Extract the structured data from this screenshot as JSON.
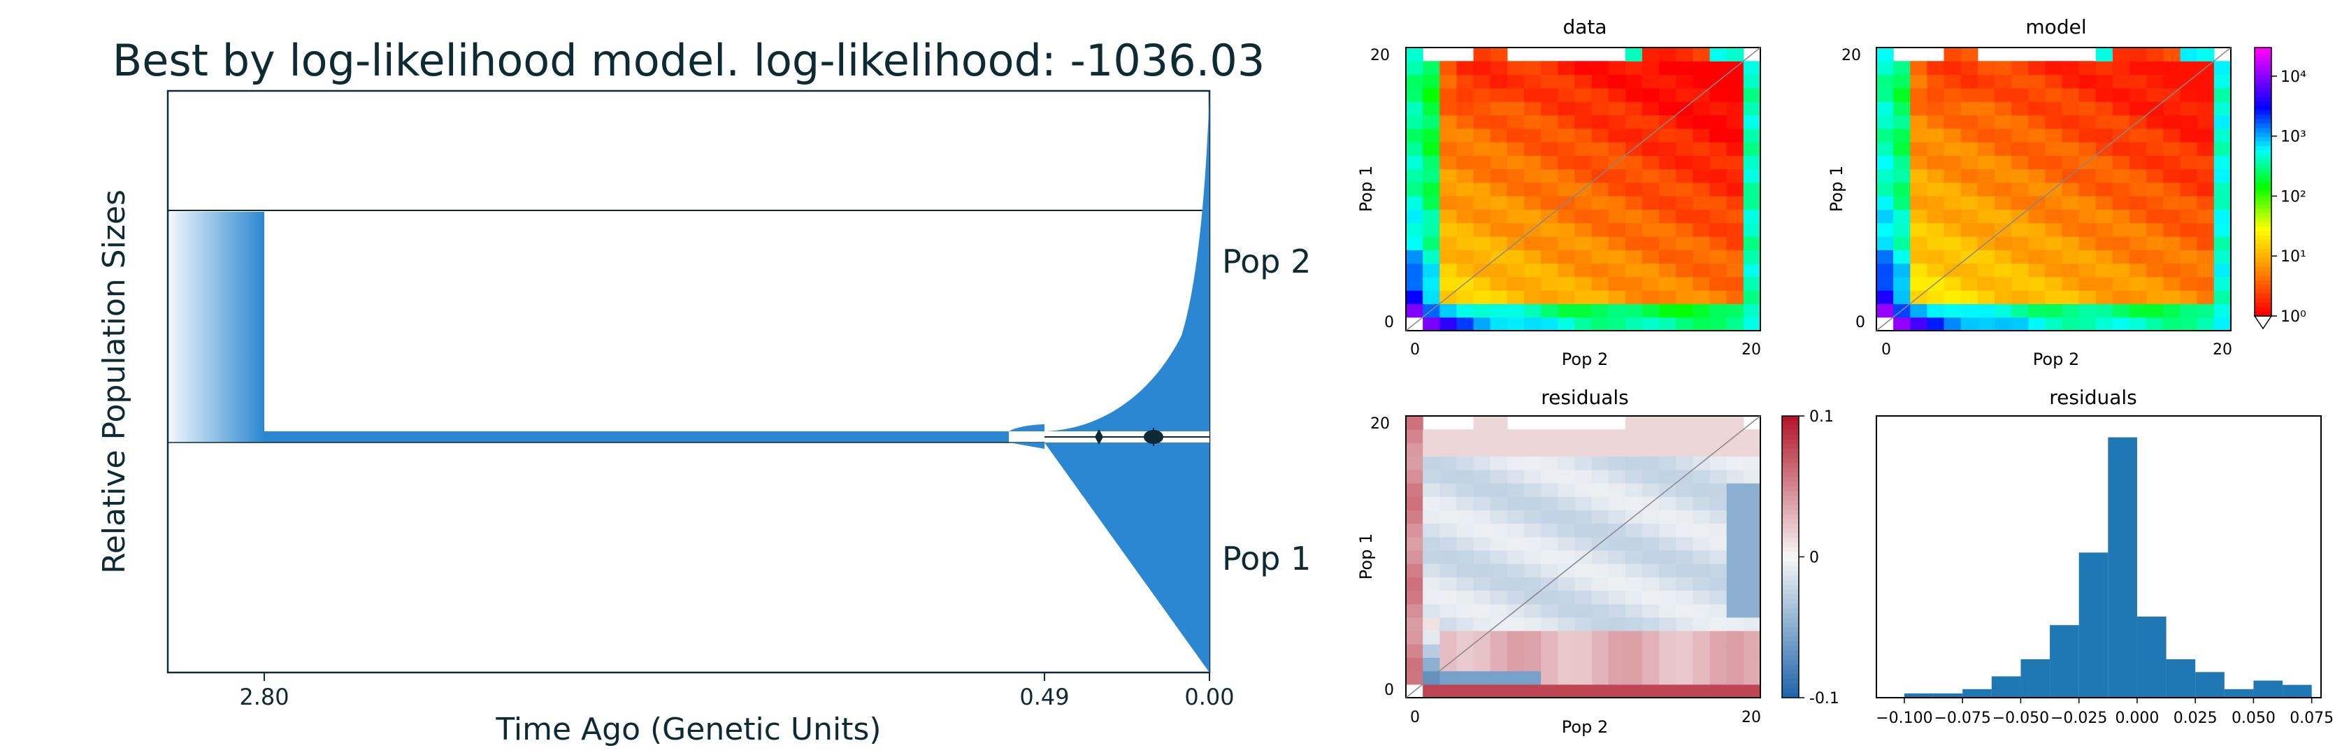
{
  "colors": {
    "demog_fill": "#2b87d1",
    "residual_neg": "#2166ac",
    "residual_pos": "#b2182b",
    "hist_bar": "#1f77b4"
  },
  "chart_data": [
    {
      "type": "area",
      "title": "Best by log-likelihood model. log-likelihood: -1036.03",
      "xlabel": "Time Ago (Genetic Units)",
      "ylabel": "Relative Population Sizes",
      "x_ticks": [
        "2.80",
        "0.49",
        "0.00"
      ],
      "x_tick_values": [
        2.8,
        0.49,
        0.0
      ],
      "population_labels": [
        "Pop 2",
        "Pop 1"
      ],
      "epochs": [
        {
          "from": 3.08,
          "to": 2.8,
          "relative_size": 1.0
        },
        {
          "from": 2.8,
          "to": 0.49,
          "relative_size": 0.03
        },
        {
          "from": 0.49,
          "to": 0.0,
          "pop2_size_end": 1.0,
          "pop1_size_end": 1.0
        }
      ]
    },
    {
      "type": "heatmap",
      "title": "data",
      "xlabel": "Pop 2",
      "ylabel": "Pop 1",
      "x_ticks": [
        "0",
        "20"
      ],
      "y_ticks": [
        "0",
        "20"
      ],
      "grid_size": 21,
      "scale": "log"
    },
    {
      "type": "heatmap",
      "title": "model",
      "xlabel": "Pop 2",
      "ylabel": "Pop 1",
      "x_ticks": [
        "0",
        "20"
      ],
      "y_ticks": [
        "0",
        "20"
      ],
      "grid_size": 21,
      "scale": "log",
      "colorbar_ticks": [
        "10⁰",
        "10¹",
        "10²",
        "10³",
        "10⁴"
      ],
      "colorbar_range": [
        1,
        30000
      ]
    },
    {
      "type": "heatmap",
      "title": "residuals",
      "xlabel": "Pop 2",
      "ylabel": "Pop 1",
      "x_ticks": [
        "0",
        "20"
      ],
      "y_ticks": [
        "0",
        "20"
      ],
      "grid_size": 21,
      "colorbar_ticks": [
        "0.1",
        "0",
        "-0.1"
      ],
      "colorbar_range": [
        -0.1,
        0.1
      ]
    },
    {
      "type": "bar",
      "title": "residuals",
      "x_ticks": [
        "−0.100",
        "−0.075",
        "−0.050",
        "−0.025",
        "0.000",
        "0.025",
        "0.050",
        "0.075"
      ],
      "x_tick_values": [
        -0.1,
        -0.075,
        -0.05,
        -0.025,
        0,
        0.025,
        0.05,
        0.075
      ],
      "xlim": [
        -0.112,
        0.079
      ],
      "bin_width": 0.0125,
      "bins_start": [
        -0.1,
        -0.0875,
        -0.075,
        -0.0625,
        -0.05,
        -0.0375,
        -0.025,
        -0.0125,
        0,
        0.0125,
        0.025,
        0.0375,
        0.05,
        0.0625
      ],
      "counts": [
        1,
        1,
        2,
        5,
        9,
        17,
        34,
        61,
        19,
        9,
        6,
        2,
        4,
        3
      ],
      "ylim": [
        0,
        66
      ]
    }
  ]
}
